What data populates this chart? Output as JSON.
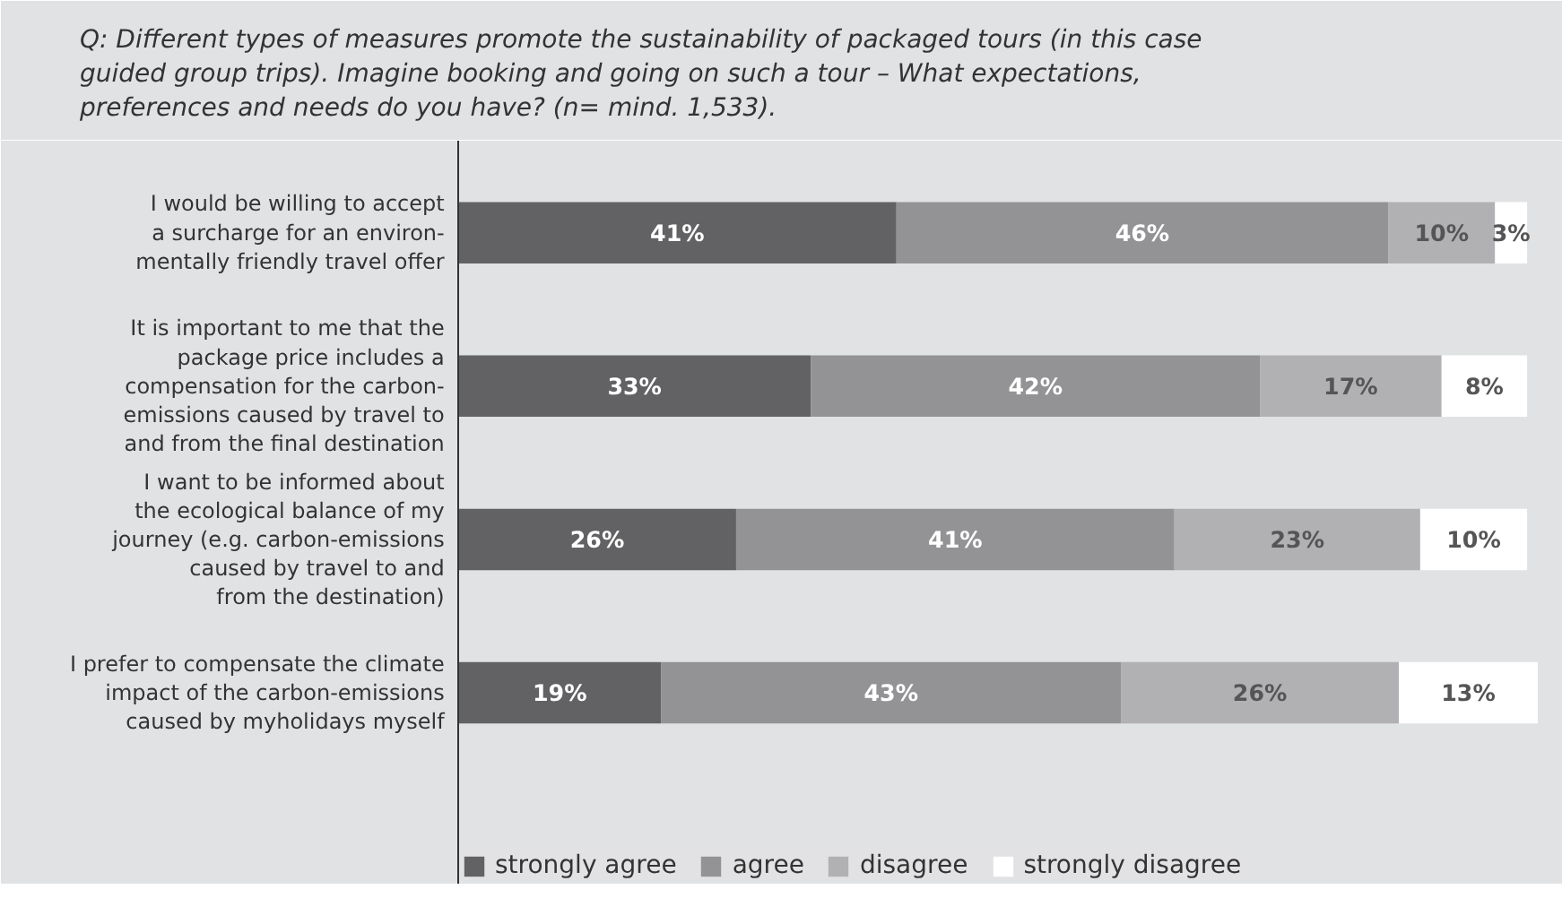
{
  "chart_data": {
    "type": "bar",
    "orientation": "horizontal",
    "stacked": true,
    "legend": "bottom",
    "tick_labels": "y",
    "title": "Q: Different types of measures promote the sustainability of packaged tours (in this case guided group trips). Imagine booking and going on such a tour – What expectations, preferences and needs do you have? (n= mind. 1,533).",
    "categories": [
      "I would be willing to accept\na surcharge for an environ-\nmentally friendly travel offer",
      "It is important to me that the\npackage price includes a\ncompensation for the carbon-\nemissions caused by travel to\nand from the final destination",
      "I want to be informed about\nthe ecological balance of my\njourney (e.g. carbon-emissions\ncaused by travel to and\nfrom the destination)",
      "I prefer to compensate the climate\nimpact of the carbon-emissions\ncaused by myholidays myself"
    ],
    "series": [
      {
        "name": "strongly agree",
        "color": "#626264",
        "values": [
          41,
          33,
          26,
          19
        ],
        "value_labels": [
          "41%",
          "33%",
          "26%",
          "19%"
        ]
      },
      {
        "name": "agree",
        "color": "#939396",
        "values": [
          46,
          42,
          41,
          43
        ],
        "value_labels": [
          "46%",
          "42%",
          "41%",
          "43%"
        ]
      },
      {
        "name": "disagree",
        "color": "#b1b1b4",
        "values": [
          10,
          17,
          23,
          26
        ],
        "value_labels": [
          "10%",
          "17%",
          "23%",
          "26%"
        ]
      },
      {
        "name": "strongly disagree",
        "color": "#ffffff",
        "values": [
          3,
          8,
          10,
          13
        ],
        "value_labels": [
          "3%",
          "8%",
          "10%",
          "13%"
        ]
      }
    ]
  }
}
